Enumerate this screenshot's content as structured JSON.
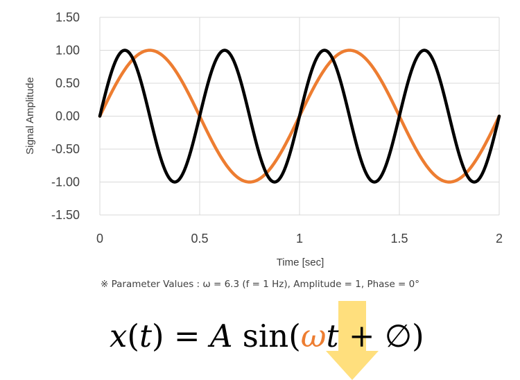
{
  "chart_data": {
    "type": "line",
    "xlabel": "Time [sec]",
    "ylabel": "Signal Amplitude",
    "xlim": [
      0,
      2
    ],
    "ylim": [
      -1.5,
      1.5
    ],
    "x_ticks": [
      "0",
      "0.5",
      "1",
      "1.5",
      "2"
    ],
    "y_ticks": [
      "1.50",
      "1.00",
      "0.50",
      "0.00",
      "-0.50",
      "-1.00",
      "-1.50"
    ],
    "grid": true,
    "series": [
      {
        "frequency_hz": 2,
        "amplitude": 1,
        "phase_deg": 0,
        "color": "#000000"
      },
      {
        "frequency_hz": 1,
        "amplitude": 1,
        "phase_deg": 0,
        "color": "#ED7D31"
      }
    ]
  },
  "note": "※ Parameter Values : ω = 6.3 (f = 1 Hz), Amplitude = 1, Phase = 0°",
  "formula": {
    "lhs_var": "x",
    "lhs_open": "(",
    "lhs_arg": "t",
    "lhs_close": ")",
    "equals": " = ",
    "amp": "A",
    "func": " sin(",
    "omega": "ω",
    "t": "t",
    "plus": " + ",
    "phase": "∅",
    "close": ")"
  },
  "colors": {
    "accent": "#ED7D31",
    "arrow": "#FFD966",
    "grid": "#D9D9D9"
  }
}
